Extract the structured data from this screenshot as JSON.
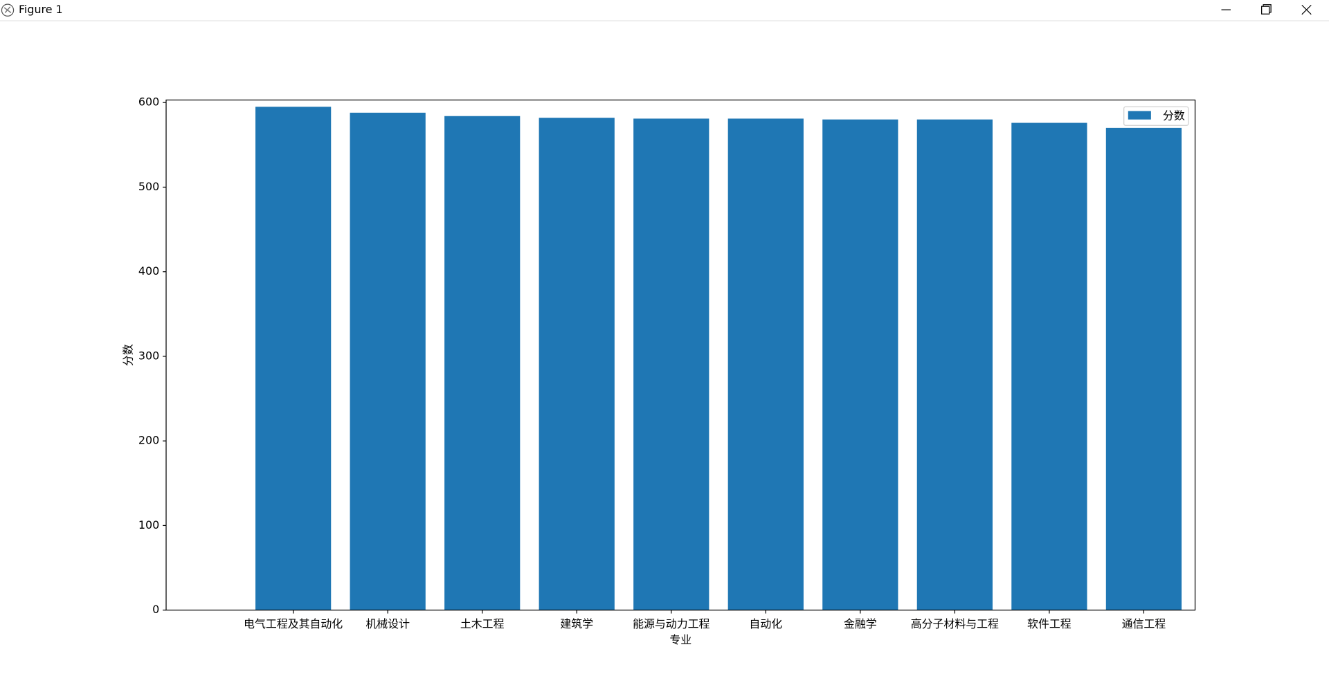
{
  "window_title": "Figure 1",
  "chart_data": {
    "type": "bar",
    "categories": [
      "电气工程及其自动化",
      "机械设计",
      "土木工程",
      "建筑学",
      "能源与动力工程",
      "自动化",
      "金融学",
      "高分子材料与工程",
      "软件工程",
      "通信工程"
    ],
    "series": [
      {
        "name": "分数",
        "color": "#1f77b4",
        "values": [
          595,
          588,
          584,
          582,
          581,
          581,
          580,
          580,
          576,
          570
        ]
      }
    ],
    "xlabel": "专业",
    "ylabel": "分数",
    "ylim": [
      0,
      603
    ],
    "yticks": [
      0,
      100,
      200,
      300,
      400,
      500,
      600
    ],
    "legend": "upper right"
  }
}
